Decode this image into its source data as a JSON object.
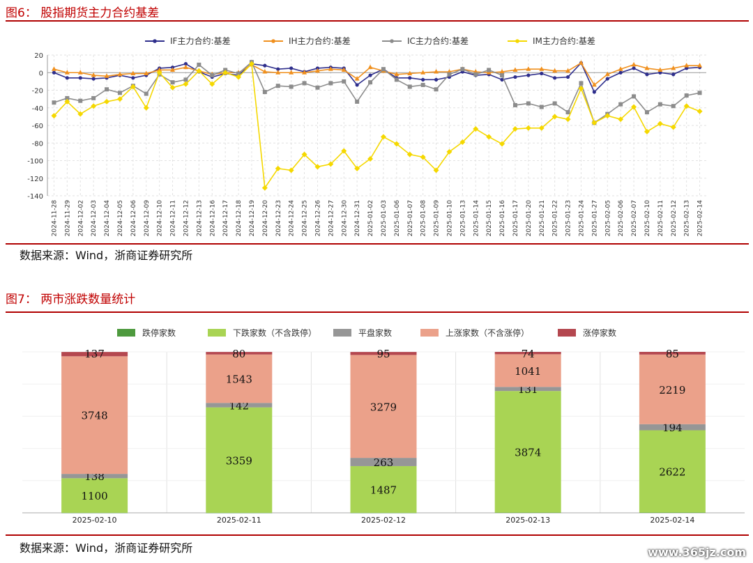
{
  "figure1": {
    "title": "图6：  股指期货主力合约基差",
    "source": "数据来源：Wind，浙商证券研究所"
  },
  "figure2": {
    "title": "图7：  两市涨跌数量统计",
    "source": "数据来源：Wind，浙商证券研究所"
  },
  "watermark": "www.365jz.com",
  "chart_data": [
    {
      "type": "line",
      "title": "",
      "ylim": [
        -140,
        20
      ],
      "yticks": [
        -140,
        -120,
        -100,
        -80,
        -60,
        -40,
        -20,
        0,
        20
      ],
      "grid": true,
      "legend": "top-center",
      "x": [
        "2024-11-28",
        "2024-11-29",
        "2024-12-02",
        "2024-12-03",
        "2024-12-04",
        "2024-12-05",
        "2024-12-06",
        "2024-12-09",
        "2024-12-10",
        "2024-12-11",
        "2024-12-12",
        "2024-12-13",
        "2024-12-16",
        "2024-12-17",
        "2024-12-18",
        "2024-12-19",
        "2024-12-20",
        "2024-12-23",
        "2024-12-24",
        "2024-12-25",
        "2024-12-26",
        "2024-12-27",
        "2024-12-30",
        "2024-12-31",
        "2025-01-02",
        "2025-01-03",
        "2025-01-06",
        "2025-01-07",
        "2025-01-08",
        "2025-01-09",
        "2025-01-10",
        "2025-01-13",
        "2025-01-14",
        "2025-01-15",
        "2025-01-16",
        "2025-01-17",
        "2025-01-20",
        "2025-01-21",
        "2025-01-22",
        "2025-01-23",
        "2025-01-24",
        "2025-01-27",
        "2025-02-05",
        "2025-02-06",
        "2025-02-07",
        "2025-02-10",
        "2025-02-11",
        "2025-02-12",
        "2025-02-13",
        "2025-02-14"
      ],
      "series": [
        {
          "name": "IF主力合约:基差",
          "color": "#2e2e8c",
          "values": [
            0,
            -6,
            -6,
            -7,
            -6,
            -3,
            -6,
            -3,
            5,
            6,
            10,
            1,
            -5,
            -1,
            -3,
            10,
            8,
            4,
            5,
            1,
            5,
            6,
            5,
            -14,
            -3,
            4,
            -6,
            -6,
            -8,
            -8,
            -5,
            1,
            -3,
            -2,
            -8,
            -5,
            -3,
            -1,
            -6,
            -5,
            11,
            -22,
            -7,
            0,
            5,
            -2,
            0,
            -2,
            5,
            6
          ]
        },
        {
          "name": "IH主力合约:基差",
          "color": "#f0901e",
          "values": [
            4,
            0,
            0,
            -3,
            -4,
            -2,
            -1,
            -1,
            3,
            3,
            6,
            2,
            -2,
            0,
            0,
            9,
            1,
            0,
            0,
            0,
            2,
            4,
            3,
            -7,
            6,
            2,
            -2,
            -1,
            0,
            1,
            1,
            4,
            1,
            0,
            1,
            3,
            4,
            4,
            2,
            2,
            11,
            -14,
            -2,
            4,
            9,
            5,
            3,
            5,
            8,
            8
          ]
        },
        {
          "name": "IC主力合约:基差",
          "color": "#8c8c8c",
          "values": [
            -34,
            -29,
            -32,
            -29,
            -19,
            -23,
            -15,
            -24,
            -2,
            -11,
            -8,
            9,
            -3,
            3,
            -1,
            12,
            -22,
            -15,
            -16,
            -12,
            -17,
            -12,
            -10,
            -33,
            -11,
            4,
            -8,
            -16,
            -14,
            -19,
            -2,
            4,
            -2,
            3,
            -3,
            -37,
            -35,
            -39,
            -35,
            -45,
            -12,
            -57,
            -47,
            -36,
            -27,
            -45,
            -36,
            -38,
            -26,
            -23
          ]
        },
        {
          "name": "IM主力合约:基差",
          "color": "#f5d800",
          "values": [
            -49,
            -33,
            -47,
            -38,
            -33,
            -30,
            -16,
            -40,
            0,
            -17,
            -13,
            2,
            -13,
            0,
            -5,
            10,
            -131,
            -109,
            -111,
            -93,
            -107,
            -104,
            -89,
            -109,
            -98,
            -73,
            -81,
            -93,
            -96,
            -111,
            -90,
            -79,
            -64,
            -73,
            -81,
            -64,
            -63,
            -63,
            -50,
            -53,
            -18,
            -57,
            -49,
            -53,
            -39,
            -67,
            -58,
            -62,
            -38,
            -44
          ]
        }
      ]
    },
    {
      "type": "bar",
      "stacked": true,
      "title": "",
      "legend": "top-center",
      "categories": [
        "2025-02-10",
        "2025-02-11",
        "2025-02-12",
        "2025-02-13",
        "2025-02-14"
      ],
      "series": [
        {
          "name": "跌停家数",
          "color": "#4e9a3e",
          "values": [
            3,
            2,
            2,
            8,
            9
          ]
        },
        {
          "name": "下跌家数（不含跌停）",
          "color": "#a9d454",
          "values": [
            1100,
            3359,
            1487,
            3874,
            2622
          ]
        },
        {
          "name": "平盘家数",
          "color": "#969696",
          "values": [
            138,
            142,
            263,
            131,
            194
          ]
        },
        {
          "name": "上涨家数（不含涨停）",
          "color": "#eba18a",
          "values": [
            3748,
            1543,
            3279,
            1041,
            2219
          ]
        },
        {
          "name": "涨停家数",
          "color": "#b4474f",
          "values": [
            137,
            80,
            95,
            74,
            85
          ]
        }
      ]
    }
  ]
}
